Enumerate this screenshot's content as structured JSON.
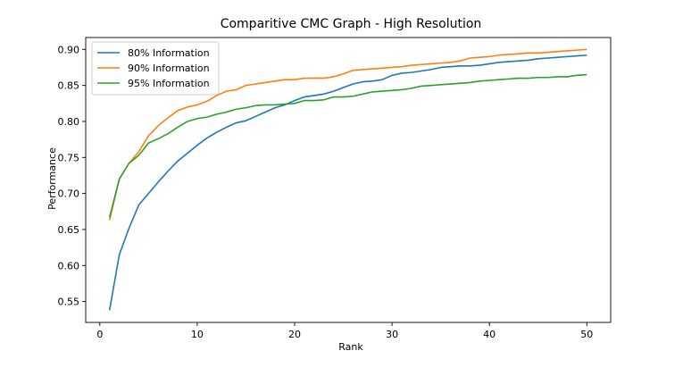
{
  "chart_data": {
    "type": "line",
    "title": "Comparitive CMC Graph - High Resolution",
    "xlabel": "Rank",
    "ylabel": "Performance",
    "xlim": [
      -1.45,
      52.45
    ],
    "ylim": [
      0.521,
      0.9165
    ],
    "xticks": [
      0,
      10,
      20,
      30,
      40,
      50
    ],
    "xtick_labels": [
      "0",
      "10",
      "20",
      "30",
      "40",
      "50"
    ],
    "yticks": [
      0.55,
      0.6,
      0.65,
      0.7,
      0.75,
      0.8,
      0.85,
      0.9
    ],
    "ytick_labels": [
      "0.55",
      "0.60",
      "0.65",
      "0.70",
      "0.75",
      "0.80",
      "0.85",
      "0.90"
    ],
    "grid": false,
    "legend_position": "top-left",
    "x": [
      1,
      2,
      3,
      4,
      5,
      6,
      7,
      8,
      9,
      10,
      11,
      12,
      13,
      14,
      15,
      16,
      17,
      18,
      19,
      20,
      21,
      22,
      23,
      24,
      25,
      26,
      27,
      28,
      29,
      30,
      31,
      32,
      33,
      34,
      35,
      36,
      37,
      38,
      39,
      40,
      41,
      42,
      43,
      44,
      45,
      46,
      47,
      48,
      49,
      50
    ],
    "series": [
      {
        "name": "80% Information",
        "color": "#1f77b4",
        "values": [
          0.538,
          0.615,
          0.652,
          0.684,
          0.7,
          0.716,
          0.731,
          0.745,
          0.756,
          0.767,
          0.777,
          0.785,
          0.792,
          0.798,
          0.801,
          0.807,
          0.813,
          0.819,
          0.823,
          0.829,
          0.834,
          0.836,
          0.838,
          0.842,
          0.847,
          0.852,
          0.855,
          0.856,
          0.858,
          0.864,
          0.867,
          0.868,
          0.87,
          0.872,
          0.875,
          0.876,
          0.877,
          0.877,
          0.878,
          0.88,
          0.882,
          0.883,
          0.884,
          0.885,
          0.887,
          0.888,
          0.889,
          0.89,
          0.891,
          0.892
        ]
      },
      {
        "name": "90% Information",
        "color": "#ff7f0e",
        "values": [
          0.663,
          0.72,
          0.742,
          0.758,
          0.78,
          0.794,
          0.805,
          0.815,
          0.82,
          0.823,
          0.828,
          0.836,
          0.842,
          0.844,
          0.85,
          0.852,
          0.854,
          0.856,
          0.858,
          0.858,
          0.86,
          0.86,
          0.86,
          0.862,
          0.866,
          0.871,
          0.872,
          0.873,
          0.874,
          0.875,
          0.876,
          0.878,
          0.879,
          0.88,
          0.881,
          0.882,
          0.884,
          0.888,
          0.889,
          0.89,
          0.892,
          0.893,
          0.894,
          0.895,
          0.895,
          0.896,
          0.897,
          0.898,
          0.899,
          0.9
        ]
      },
      {
        "name": "95% Information",
        "color": "#2ca02c",
        "values": [
          0.667,
          0.72,
          0.742,
          0.753,
          0.77,
          0.776,
          0.783,
          0.792,
          0.8,
          0.804,
          0.806,
          0.81,
          0.813,
          0.817,
          0.819,
          0.822,
          0.823,
          0.823,
          0.824,
          0.825,
          0.829,
          0.829,
          0.83,
          0.834,
          0.834,
          0.835,
          0.838,
          0.841,
          0.842,
          0.843,
          0.844,
          0.846,
          0.849,
          0.85,
          0.851,
          0.852,
          0.853,
          0.854,
          0.856,
          0.857,
          0.858,
          0.859,
          0.86,
          0.86,
          0.861,
          0.861,
          0.862,
          0.862,
          0.864,
          0.865
        ]
      }
    ]
  }
}
